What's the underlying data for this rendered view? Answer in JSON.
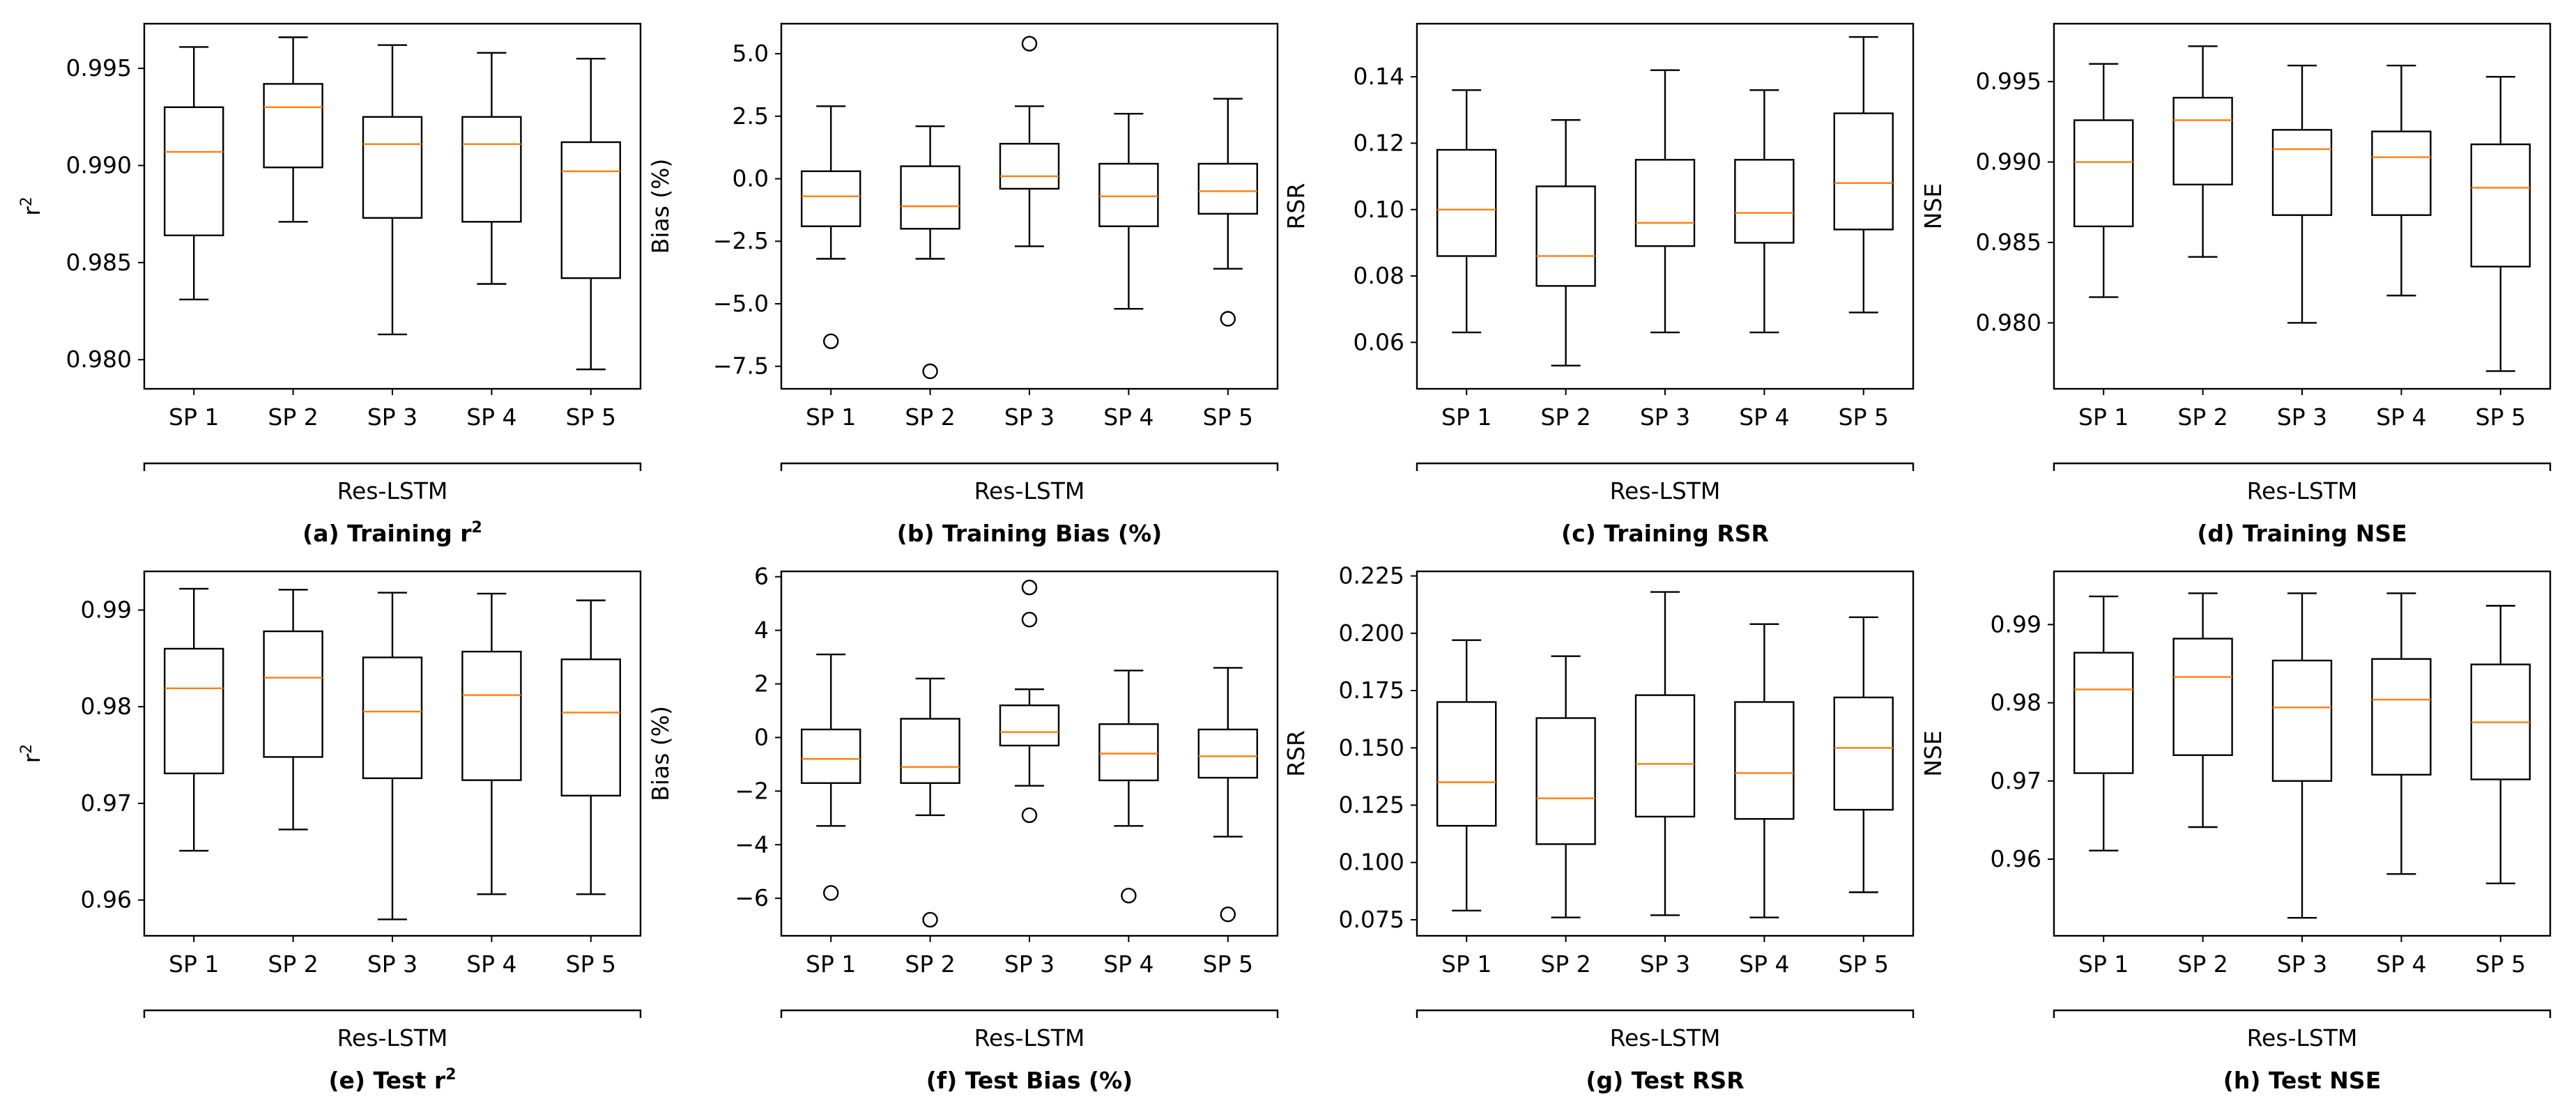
{
  "chart_data": [
    {
      "id": "a",
      "type": "box",
      "ylabel": "r",
      "ylabel_sup": "2",
      "categories": [
        "SP 1",
        "SP 2",
        "SP 3",
        "SP 4",
        "SP 5"
      ],
      "ylim": [
        0.9785,
        0.9973
      ],
      "yticks": [
        0.98,
        0.985,
        0.99,
        0.995
      ],
      "ytick_labels": [
        "0.980",
        "0.985",
        "0.990",
        "0.995"
      ],
      "boxes": [
        {
          "whislo": 0.9831,
          "q1": 0.9864,
          "med": 0.9907,
          "q3": 0.993,
          "whishi": 0.9961,
          "fliers": []
        },
        {
          "whislo": 0.9871,
          "q1": 0.9899,
          "med": 0.993,
          "q3": 0.9942,
          "whishi": 0.9966,
          "fliers": []
        },
        {
          "whislo": 0.9813,
          "q1": 0.9873,
          "med": 0.9911,
          "q3": 0.9925,
          "whishi": 0.9962,
          "fliers": []
        },
        {
          "whislo": 0.9839,
          "q1": 0.9871,
          "med": 0.9911,
          "q3": 0.9925,
          "whishi": 0.9958,
          "fliers": []
        },
        {
          "whislo": 0.9795,
          "q1": 0.9842,
          "med": 0.9897,
          "q3": 0.9912,
          "whishi": 0.9955,
          "fliers": []
        }
      ],
      "group_label": "Res-LSTM",
      "caption_prefix": "(a) Training r",
      "caption_sup": "2",
      "caption_suffix": ""
    },
    {
      "id": "b",
      "type": "box",
      "ylabel": "Bias (%)",
      "ylabel_sup": "",
      "categories": [
        "SP 1",
        "SP 2",
        "SP 3",
        "SP 4",
        "SP 5"
      ],
      "ylim": [
        -8.4,
        6.2
      ],
      "yticks": [
        -7.5,
        -5.0,
        -2.5,
        0.0,
        2.5,
        5.0
      ],
      "ytick_labels": [
        "−7.5",
        "−5.0",
        "−2.5",
        "0.0",
        "2.5",
        "5.0"
      ],
      "boxes": [
        {
          "whislo": -3.2,
          "q1": -1.9,
          "med": -0.7,
          "q3": 0.3,
          "whishi": 2.9,
          "fliers": [
            -6.5
          ]
        },
        {
          "whislo": -3.2,
          "q1": -2.0,
          "med": -1.1,
          "q3": 0.5,
          "whishi": 2.1,
          "fliers": [
            -7.7
          ]
        },
        {
          "whislo": -2.7,
          "q1": -0.4,
          "med": 0.1,
          "q3": 1.4,
          "whishi": 2.9,
          "fliers": [
            5.4
          ]
        },
        {
          "whislo": -5.2,
          "q1": -1.9,
          "med": -0.7,
          "q3": 0.6,
          "whishi": 2.6,
          "fliers": []
        },
        {
          "whislo": -3.6,
          "q1": -1.4,
          "med": -0.5,
          "q3": 0.6,
          "whishi": 3.2,
          "fliers": [
            -5.6
          ]
        }
      ],
      "group_label": "Res-LSTM",
      "caption_prefix": "(b) Training Bias (%)",
      "caption_sup": "",
      "caption_suffix": ""
    },
    {
      "id": "c",
      "type": "box",
      "ylabel": "RSR",
      "ylabel_sup": "",
      "categories": [
        "SP 1",
        "SP 2",
        "SP 3",
        "SP 4",
        "SP 5"
      ],
      "ylim": [
        0.046,
        0.156
      ],
      "yticks": [
        0.06,
        0.08,
        0.1,
        0.12,
        0.14
      ],
      "ytick_labels": [
        "0.06",
        "0.08",
        "0.10",
        "0.12",
        "0.14"
      ],
      "boxes": [
        {
          "whislo": 0.063,
          "q1": 0.086,
          "med": 0.1,
          "q3": 0.118,
          "whishi": 0.136,
          "fliers": []
        },
        {
          "whislo": 0.053,
          "q1": 0.077,
          "med": 0.086,
          "q3": 0.107,
          "whishi": 0.127,
          "fliers": []
        },
        {
          "whislo": 0.063,
          "q1": 0.089,
          "med": 0.096,
          "q3": 0.115,
          "whishi": 0.142,
          "fliers": []
        },
        {
          "whislo": 0.063,
          "q1": 0.09,
          "med": 0.099,
          "q3": 0.115,
          "whishi": 0.136,
          "fliers": []
        },
        {
          "whislo": 0.069,
          "q1": 0.094,
          "med": 0.108,
          "q3": 0.129,
          "whishi": 0.152,
          "fliers": []
        }
      ],
      "group_label": "Res-LSTM",
      "caption_prefix": "(c) Training RSR",
      "caption_sup": "",
      "caption_suffix": ""
    },
    {
      "id": "d",
      "type": "box",
      "ylabel": "NSE",
      "ylabel_sup": "",
      "categories": [
        "SP 1",
        "SP 2",
        "SP 3",
        "SP 4",
        "SP 5"
      ],
      "ylim": [
        0.9759,
        0.9986
      ],
      "yticks": [
        0.98,
        0.985,
        0.99,
        0.995
      ],
      "ytick_labels": [
        "0.980",
        "0.985",
        "0.990",
        "0.995"
      ],
      "boxes": [
        {
          "whislo": 0.9816,
          "q1": 0.986,
          "med": 0.99,
          "q3": 0.9926,
          "whishi": 0.9961,
          "fliers": []
        },
        {
          "whislo": 0.9841,
          "q1": 0.9886,
          "med": 0.9926,
          "q3": 0.994,
          "whishi": 0.9972,
          "fliers": []
        },
        {
          "whislo": 0.98,
          "q1": 0.9867,
          "med": 0.9908,
          "q3": 0.992,
          "whishi": 0.996,
          "fliers": []
        },
        {
          "whislo": 0.9817,
          "q1": 0.9867,
          "med": 0.9903,
          "q3": 0.9919,
          "whishi": 0.996,
          "fliers": []
        },
        {
          "whislo": 0.977,
          "q1": 0.9835,
          "med": 0.9884,
          "q3": 0.9911,
          "whishi": 0.9953,
          "fliers": []
        }
      ],
      "group_label": "Res-LSTM",
      "caption_prefix": "(d) Training NSE",
      "caption_sup": "",
      "caption_suffix": ""
    },
    {
      "id": "e",
      "type": "box",
      "ylabel": "r",
      "ylabel_sup": "2",
      "categories": [
        "SP 1",
        "SP 2",
        "SP 3",
        "SP 4",
        "SP 5"
      ],
      "ylim": [
        0.9563,
        0.994
      ],
      "yticks": [
        0.96,
        0.97,
        0.98,
        0.99
      ],
      "ytick_labels": [
        "0.96",
        "0.97",
        "0.98",
        "0.99"
      ],
      "boxes": [
        {
          "whislo": 0.9651,
          "q1": 0.9731,
          "med": 0.9819,
          "q3": 0.986,
          "whishi": 0.9922,
          "fliers": []
        },
        {
          "whislo": 0.9673,
          "q1": 0.9748,
          "med": 0.983,
          "q3": 0.9878,
          "whishi": 0.9921,
          "fliers": []
        },
        {
          "whislo": 0.958,
          "q1": 0.9726,
          "med": 0.9795,
          "q3": 0.9851,
          "whishi": 0.9918,
          "fliers": []
        },
        {
          "whislo": 0.9606,
          "q1": 0.9724,
          "med": 0.9812,
          "q3": 0.9857,
          "whishi": 0.9917,
          "fliers": []
        },
        {
          "whislo": 0.9606,
          "q1": 0.9708,
          "med": 0.9794,
          "q3": 0.9849,
          "whishi": 0.991,
          "fliers": []
        }
      ],
      "group_label": "Res-LSTM",
      "caption_prefix": "(e) Test r",
      "caption_sup": "2",
      "caption_suffix": ""
    },
    {
      "id": "f",
      "type": "box",
      "ylabel": "Bias (%)",
      "ylabel_sup": "",
      "categories": [
        "SP 1",
        "SP 2",
        "SP 3",
        "SP 4",
        "SP 5"
      ],
      "ylim": [
        -7.4,
        6.2
      ],
      "yticks": [
        -6,
        -4,
        -2,
        0,
        2,
        4,
        6
      ],
      "ytick_labels": [
        "−6",
        "−4",
        "−2",
        "0",
        "2",
        "4",
        "6"
      ],
      "boxes": [
        {
          "whislo": -3.3,
          "q1": -1.7,
          "med": -0.8,
          "q3": 0.3,
          "whishi": 3.1,
          "fliers": [
            -5.8
          ]
        },
        {
          "whislo": -2.9,
          "q1": -1.7,
          "med": -1.1,
          "q3": 0.7,
          "whishi": 2.2,
          "fliers": [
            -6.8
          ]
        },
        {
          "whislo": -1.8,
          "q1": -0.3,
          "med": 0.2,
          "q3": 1.2,
          "whishi": 1.8,
          "fliers": [
            -2.9,
            4.4,
            5.6
          ]
        },
        {
          "whislo": -3.3,
          "q1": -1.6,
          "med": -0.6,
          "q3": 0.5,
          "whishi": 2.5,
          "fliers": [
            -5.9
          ]
        },
        {
          "whislo": -3.7,
          "q1": -1.5,
          "med": -0.7,
          "q3": 0.3,
          "whishi": 2.6,
          "fliers": [
            -6.6
          ]
        }
      ],
      "group_label": "Res-LSTM",
      "caption_prefix": "(f) Test Bias (%)",
      "caption_sup": "",
      "caption_suffix": ""
    },
    {
      "id": "g",
      "type": "box",
      "ylabel": "RSR",
      "ylabel_sup": "",
      "categories": [
        "SP 1",
        "SP 2",
        "SP 3",
        "SP 4",
        "SP 5"
      ],
      "ylim": [
        0.068,
        0.227
      ],
      "yticks": [
        0.075,
        0.1,
        0.125,
        0.15,
        0.175,
        0.2,
        0.225
      ],
      "ytick_labels": [
        "0.075",
        "0.100",
        "0.125",
        "0.150",
        "0.175",
        "0.200",
        "0.225"
      ],
      "boxes": [
        {
          "whislo": 0.079,
          "q1": 0.116,
          "med": 0.135,
          "q3": 0.17,
          "whishi": 0.197,
          "fliers": []
        },
        {
          "whislo": 0.076,
          "q1": 0.108,
          "med": 0.128,
          "q3": 0.163,
          "whishi": 0.19,
          "fliers": []
        },
        {
          "whislo": 0.077,
          "q1": 0.12,
          "med": 0.143,
          "q3": 0.173,
          "whishi": 0.218,
          "fliers": []
        },
        {
          "whislo": 0.076,
          "q1": 0.119,
          "med": 0.139,
          "q3": 0.17,
          "whishi": 0.204,
          "fliers": []
        },
        {
          "whislo": 0.087,
          "q1": 0.123,
          "med": 0.15,
          "q3": 0.172,
          "whishi": 0.207,
          "fliers": []
        }
      ],
      "group_label": "Res-LSTM",
      "caption_prefix": "(g) Test RSR",
      "caption_sup": "",
      "caption_suffix": ""
    },
    {
      "id": "h",
      "type": "box",
      "ylabel": "NSE",
      "ylabel_sup": "",
      "categories": [
        "SP 1",
        "SP 2",
        "SP 3",
        "SP 4",
        "SP 5"
      ],
      "ylim": [
        0.9502,
        0.9968
      ],
      "yticks": [
        0.96,
        0.97,
        0.98,
        0.99
      ],
      "ytick_labels": [
        "0.96",
        "0.97",
        "0.98",
        "0.99"
      ],
      "boxes": [
        {
          "whislo": 0.9611,
          "q1": 0.971,
          "med": 0.9817,
          "q3": 0.9864,
          "whishi": 0.9936,
          "fliers": []
        },
        {
          "whislo": 0.9641,
          "q1": 0.9733,
          "med": 0.9833,
          "q3": 0.9882,
          "whishi": 0.994,
          "fliers": []
        },
        {
          "whislo": 0.9525,
          "q1": 0.97,
          "med": 0.9794,
          "q3": 0.9854,
          "whishi": 0.994,
          "fliers": []
        },
        {
          "whislo": 0.9581,
          "q1": 0.9708,
          "med": 0.9804,
          "q3": 0.9856,
          "whishi": 0.994,
          "fliers": []
        },
        {
          "whislo": 0.9569,
          "q1": 0.9702,
          "med": 0.9775,
          "q3": 0.9849,
          "whishi": 0.9924,
          "fliers": []
        }
      ],
      "group_label": "Res-LSTM",
      "caption_prefix": "(h) Test NSE",
      "caption_sup": "",
      "caption_suffix": ""
    }
  ]
}
